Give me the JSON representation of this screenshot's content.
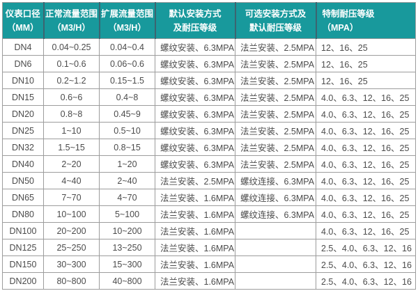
{
  "colors": {
    "page_bg": "#ffffff",
    "header_bg": "#18999c",
    "header_text": "#ffffff",
    "header_divider": "#3c6470",
    "border": "#9c9c9c",
    "text": "#4b4b4b",
    "row_bg": "#ffffff"
  },
  "table": {
    "headers": [
      {
        "line1": "仪表口径",
        "line2": "（MM）"
      },
      {
        "line1": "正常流量范围",
        "line2": "（M3/H）"
      },
      {
        "line1": "扩展流量范围",
        "line2": "（M3/H）"
      },
      {
        "line1": "默认安装方式",
        "line2": "及耐压等级"
      },
      {
        "line1": "可选安装方式及",
        "line2": "默认耐压等级"
      },
      {
        "line1": "特制耐压等级",
        "line2": "（MPA）"
      }
    ],
    "column_keys": [
      "dn",
      "normal",
      "extended",
      "default_install",
      "optional_install",
      "special"
    ],
    "rows": [
      {
        "dn": "DN4",
        "normal": "0.04~0.25",
        "extended": "0.04~0.4",
        "default_install": "螺纹安装、6.3MPA",
        "optional_install": "法兰安装、2.5MPA",
        "special": "12、16、25"
      },
      {
        "dn": "DN6",
        "normal": "0.1~0.6",
        "extended": "0.06~0.6",
        "default_install": "螺纹安装、6.3MPA",
        "optional_install": "法兰安装、2.5MPA",
        "special": "12、16、25"
      },
      {
        "dn": "DN10",
        "normal": "0.2~1.2",
        "extended": "0.15~1.5",
        "default_install": "螺纹安装、6.3MPA",
        "optional_install": "法兰安装、2.5MPA",
        "special": "12、16、25"
      },
      {
        "dn": "DN15",
        "normal": "0.6~6",
        "extended": "0.4~8",
        "default_install": "螺纹安装、6.3MPA",
        "optional_install": "法兰安装、2.5MPA",
        "special": "4.0、6.3、12、16、25"
      },
      {
        "dn": "DN20",
        "normal": "0.8~8",
        "extended": "0.45~9",
        "default_install": "螺纹安装、6.3MPA",
        "optional_install": "法兰安装、2.5MPA",
        "special": "4.0、6.3、12、16、25"
      },
      {
        "dn": "DN25",
        "normal": "1~10",
        "extended": "0.5~10",
        "default_install": "螺纹安装、6.3MPA",
        "optional_install": "法兰安装、2.5MPA",
        "special": "4.0、6.3、12、16、25"
      },
      {
        "dn": "DN32",
        "normal": "1.5~15",
        "extended": "0.8~15",
        "default_install": "螺纹安装、6.3MPA",
        "optional_install": "法兰安装、2.5MPA",
        "special": "4.0、6.3、12、16、25"
      },
      {
        "dn": "DN40",
        "normal": "2~20",
        "extended": "1~20",
        "default_install": "螺纹安装、6.3MPA",
        "optional_install": "法兰安装、2.5MPA",
        "special": "4.0、6.3、12、16、25"
      },
      {
        "dn": "DN50",
        "normal": "4~40",
        "extended": "2~40",
        "default_install": "法兰安装、2.5MPA",
        "optional_install": "螺纹连接、6.3MPA",
        "special": "4.0、6.3、12、16、25"
      },
      {
        "dn": "DN65",
        "normal": "7~70",
        "extended": "4~70",
        "default_install": "法兰安装、1.6MPA",
        "optional_install": "螺纹连接、6.3MPA",
        "special": "4.0、6.3、12、16、25"
      },
      {
        "dn": "DN80",
        "normal": "10~100",
        "extended": "5~100",
        "default_install": "法兰安装、1.6MPA",
        "optional_install": "螺纹连接、6.3MPA",
        "special": "4.0、6.3、12、16、25"
      },
      {
        "dn": "DN100",
        "normal": "20~200",
        "extended": "10~200",
        "default_install": "法兰安装、1.6MPA",
        "optional_install": "",
        "special": "4.0、6.3、12、16、25"
      },
      {
        "dn": "DN125",
        "normal": "25~250",
        "extended": "13~250",
        "default_install": "法兰安装、1.6MPA",
        "optional_install": "",
        "special": "2.5、4.0、6.3、12、16"
      },
      {
        "dn": "DN150",
        "normal": "30~300",
        "extended": "15~300",
        "default_install": "法兰安装、1.6MPA",
        "optional_install": "",
        "special": "2.5、4.0、6.3、12、16"
      },
      {
        "dn": "DN200",
        "normal": "80~800",
        "extended": "40~800",
        "default_install": "法兰安装、1.6MPA",
        "optional_install": "",
        "special": "2.5、4.0、6.3、12、16"
      }
    ]
  }
}
